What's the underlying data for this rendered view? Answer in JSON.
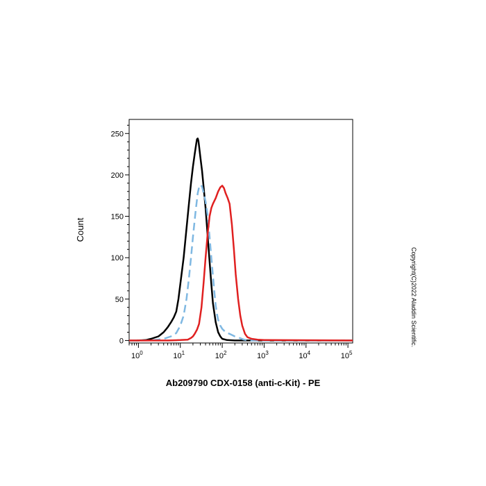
{
  "chart_data": {
    "type": "line",
    "xlabel": "Ab209790 CDX-0158 (anti-c-Kit) - PE",
    "ylabel": "Count",
    "x_scale": "log",
    "xlim": [
      0.6,
      130000
    ],
    "ylim": [
      -3,
      267
    ],
    "x_ticks": [
      {
        "base": "10",
        "exp": "0"
      },
      {
        "base": "10",
        "exp": "1"
      },
      {
        "base": "10",
        "exp": "2"
      },
      {
        "base": "10",
        "exp": "3"
      },
      {
        "base": "10",
        "exp": "4"
      },
      {
        "base": "10",
        "exp": "5"
      }
    ],
    "y_ticks": [
      "0",
      "50",
      "100",
      "150",
      "200",
      "250"
    ],
    "grid": false,
    "legend": "none",
    "series": [
      {
        "color": "#000000",
        "style": "solid",
        "points": [
          [
            0.6,
            0
          ],
          [
            1,
            0
          ],
          [
            1.5,
            0.5
          ],
          [
            2,
            2
          ],
          [
            3,
            5
          ],
          [
            4,
            10
          ],
          [
            5,
            16
          ],
          [
            6,
            22
          ],
          [
            7,
            28
          ],
          [
            8,
            35
          ],
          [
            9,
            50
          ],
          [
            10,
            68
          ],
          [
            12,
            100
          ],
          [
            14,
            135
          ],
          [
            16,
            165
          ],
          [
            18,
            190
          ],
          [
            20,
            210
          ],
          [
            22,
            225
          ],
          [
            24,
            238
          ],
          [
            25,
            243
          ],
          [
            26,
            244
          ],
          [
            27,
            241
          ],
          [
            28,
            235
          ],
          [
            30,
            222
          ],
          [
            33,
            205
          ],
          [
            36,
            185
          ],
          [
            40,
            160
          ],
          [
            45,
            125
          ],
          [
            50,
            95
          ],
          [
            55,
            68
          ],
          [
            60,
            45
          ],
          [
            70,
            22
          ],
          [
            80,
            10
          ],
          [
            90,
            5
          ],
          [
            100,
            2
          ],
          [
            130,
            0.5
          ],
          [
            200,
            0
          ],
          [
            130000,
            0
          ]
        ]
      },
      {
        "color": "#7fb8e2",
        "style": "dashed",
        "points": [
          [
            0.6,
            0
          ],
          [
            2,
            0
          ],
          [
            4,
            2
          ],
          [
            6,
            5
          ],
          [
            8,
            9
          ],
          [
            10,
            18
          ],
          [
            12,
            30
          ],
          [
            14,
            50
          ],
          [
            16,
            75
          ],
          [
            18,
            100
          ],
          [
            20,
            125
          ],
          [
            23,
            155
          ],
          [
            26,
            178
          ],
          [
            28,
            185
          ],
          [
            30,
            188
          ],
          [
            33,
            186
          ],
          [
            36,
            178
          ],
          [
            40,
            168
          ],
          [
            45,
            150
          ],
          [
            50,
            125
          ],
          [
            55,
            100
          ],
          [
            60,
            78
          ],
          [
            65,
            58
          ],
          [
            70,
            42
          ],
          [
            75,
            32
          ],
          [
            80,
            25
          ],
          [
            90,
            18
          ],
          [
            100,
            14
          ],
          [
            110,
            12
          ],
          [
            120,
            10
          ],
          [
            150,
            8
          ],
          [
            200,
            5
          ],
          [
            260,
            3
          ],
          [
            330,
            1
          ],
          [
            420,
            0
          ],
          [
            130000,
            0
          ]
        ]
      },
      {
        "color": "#e02020",
        "style": "solid",
        "points": [
          [
            0.6,
            0
          ],
          [
            5,
            0
          ],
          [
            10,
            0.5
          ],
          [
            15,
            1
          ],
          [
            18,
            3
          ],
          [
            20,
            5
          ],
          [
            22,
            8
          ],
          [
            25,
            13
          ],
          [
            28,
            20
          ],
          [
            32,
            40
          ],
          [
            36,
            70
          ],
          [
            40,
            100
          ],
          [
            45,
            130
          ],
          [
            50,
            150
          ],
          [
            55,
            160
          ],
          [
            60,
            165
          ],
          [
            70,
            172
          ],
          [
            80,
            180
          ],
          [
            90,
            185
          ],
          [
            100,
            187
          ],
          [
            110,
            184
          ],
          [
            120,
            178
          ],
          [
            135,
            172
          ],
          [
            150,
            165
          ],
          [
            170,
            140
          ],
          [
            190,
            110
          ],
          [
            210,
            80
          ],
          [
            240,
            50
          ],
          [
            270,
            30
          ],
          [
            300,
            18
          ],
          [
            350,
            8
          ],
          [
            400,
            4
          ],
          [
            500,
            2
          ],
          [
            700,
            1
          ],
          [
            1000,
            0.5
          ],
          [
            130000,
            0
          ]
        ]
      }
    ]
  },
  "copyright": "Copyright(C)2022 Aladdin Scientific."
}
